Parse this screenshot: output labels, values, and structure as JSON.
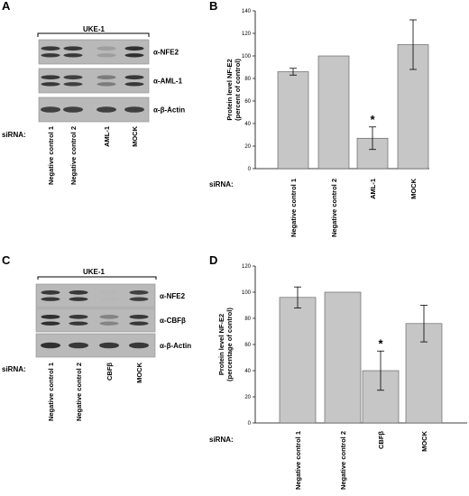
{
  "panels": [
    {
      "letter": "A",
      "cell_line": "UKE-1",
      "siRNA_label": "siRNA:",
      "blots": [
        "α-NFE2",
        "α-AML-1",
        "α-β-Actin"
      ],
      "lanes": [
        "Negative control 1",
        "Negative control 2",
        "AML-1",
        "MOCK"
      ],
      "band_intensities": [
        [
          0.85,
          0.85,
          0.25,
          0.9
        ],
        [
          0.85,
          0.8,
          0.45,
          0.85
        ],
        [
          0.8,
          0.8,
          0.8,
          0.8
        ]
      ]
    },
    {
      "letter": "C",
      "cell_line": "UKE-1",
      "siRNA_label": "siRNA:",
      "blots": [
        "α-NFE2",
        "α-CBFβ",
        "α-β-Actin"
      ],
      "lanes": [
        "Negative control 1",
        "Negative control 2",
        "CBFβ",
        "MOCK"
      ],
      "band_intensities": [
        [
          0.85,
          0.85,
          0.1,
          0.8
        ],
        [
          0.9,
          0.85,
          0.4,
          0.85
        ],
        [
          0.9,
          0.85,
          0.85,
          0.85
        ]
      ]
    }
  ],
  "chart_data": [
    {
      "letter": "B",
      "type": "bar",
      "categories": [
        "Negative control 1",
        "Negative control 2",
        "AML-1",
        "MOCK"
      ],
      "values": [
        86,
        100,
        27,
        110
      ],
      "errors": [
        3,
        0,
        10,
        22
      ],
      "significance": [
        "",
        "",
        "*",
        ""
      ],
      "ylabel": "Protein level NF-E2 (percent of control)",
      "ylim": [
        0,
        140
      ],
      "yticks": [
        0,
        20,
        40,
        60,
        80,
        100,
        120,
        140
      ],
      "siRNA_label": "siRNA:",
      "bar_color": "#c6c6c6"
    },
    {
      "letter": "D",
      "type": "bar",
      "categories": [
        "Negative control 1",
        "Negative control 2",
        "CBFβ",
        "MOCK"
      ],
      "values": [
        96,
        100,
        40,
        76
      ],
      "errors": [
        8,
        0,
        15,
        14
      ],
      "significance": [
        "",
        "",
        "*",
        ""
      ],
      "ylabel": "Protein level NF-E2 (percentage of control)",
      "ylim": [
        0,
        120
      ],
      "yticks": [
        0,
        20,
        40,
        60,
        80,
        100,
        120
      ],
      "siRNA_label": "siRNA:",
      "bar_color": "#c6c6c6"
    }
  ]
}
